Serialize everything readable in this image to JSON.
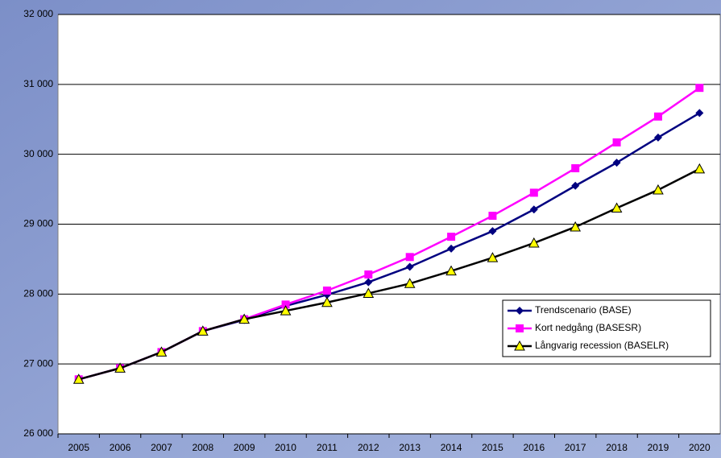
{
  "chart_data": {
    "type": "line",
    "categories": [
      "2005",
      "2006",
      "2007",
      "2008",
      "2009",
      "2010",
      "2011",
      "2012",
      "2013",
      "2014",
      "2015",
      "2016",
      "2017",
      "2018",
      "2019",
      "2020"
    ],
    "series": [
      {
        "name": "Trendscenario (BASE)",
        "color": "#000080",
        "marker": "diamond",
        "values": [
          26780,
          26940,
          27170,
          27470,
          27630,
          27830,
          27990,
          28170,
          28390,
          28650,
          28900,
          29210,
          29550,
          29880,
          30240,
          30590
        ]
      },
      {
        "name": "Kort nedgång (BASESR)",
        "color": "#ff00ff",
        "marker": "square",
        "values": [
          26780,
          26940,
          27170,
          27470,
          27640,
          27850,
          28050,
          28280,
          28530,
          28820,
          29120,
          29450,
          29800,
          30170,
          30540,
          30950
        ]
      },
      {
        "name": "Långvarig recession (BASELR)",
        "color": "#000000",
        "marker": "triangle",
        "values": [
          26780,
          26940,
          27170,
          27470,
          27640,
          27760,
          27880,
          28010,
          28150,
          28330,
          28520,
          28730,
          28960,
          29230,
          29490,
          29790
        ]
      }
    ],
    "ylim": [
      26000,
      32000
    ],
    "yticks": [
      {
        "value": 26000,
        "label": "26 000"
      },
      {
        "value": 27000,
        "label": "27 000"
      },
      {
        "value": 28000,
        "label": "28 000"
      },
      {
        "value": 29000,
        "label": "29 000"
      },
      {
        "value": 30000,
        "label": "30 000"
      },
      {
        "value": 31000,
        "label": "31 000"
      },
      {
        "value": 32000,
        "label": "32 000"
      }
    ],
    "grid": true,
    "legend": "lower right"
  }
}
